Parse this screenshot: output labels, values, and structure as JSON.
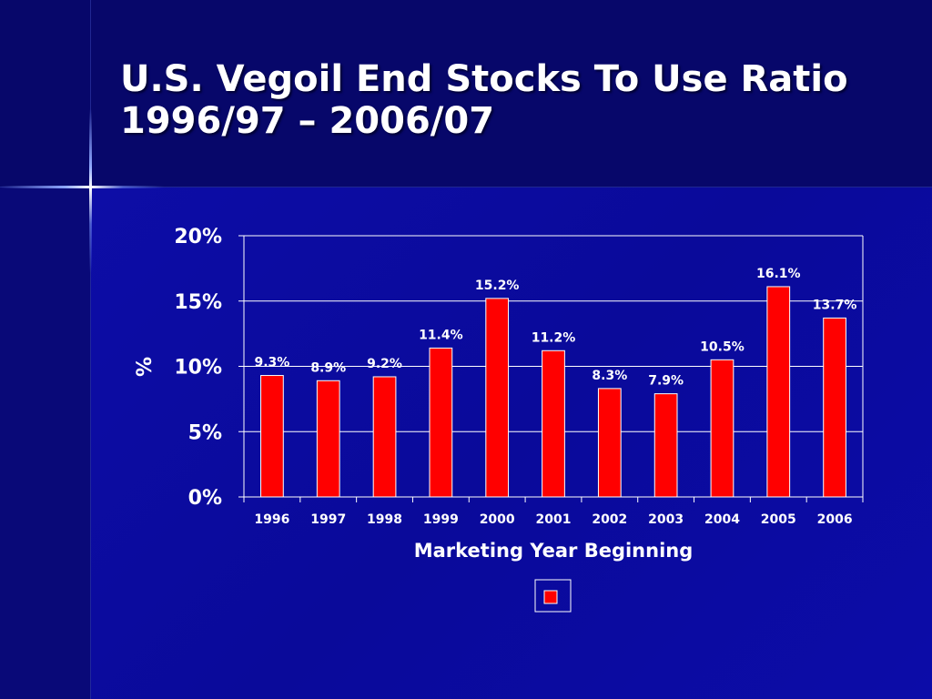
{
  "title": {
    "line1": "U.S. Vegoil End Stocks To Use Ratio",
    "line2": "1996/97 – 2006/07"
  },
  "colors": {
    "bar_fill": "#ff0000",
    "bar_stroke": "#ffffff",
    "text": "#ffffff",
    "gridline": "#ffffff"
  },
  "chart_data": {
    "type": "bar",
    "title": "",
    "xlabel": "Marketing Year Beginning",
    "ylabel": "%",
    "categories": [
      "1996",
      "1997",
      "1998",
      "1999",
      "2000",
      "2001",
      "2002",
      "2003",
      "2004",
      "2005",
      "2006"
    ],
    "series": [
      {
        "name": "",
        "values": [
          9.3,
          8.9,
          9.2,
          11.4,
          15.2,
          11.2,
          8.3,
          7.9,
          10.5,
          16.1,
          13.7
        ],
        "labels": [
          "9.3%",
          "8.9%",
          "9.2%",
          "11.4%",
          "15.2%",
          "11.2%",
          "8.3%",
          "7.9%",
          "10.5%",
          "16.1%",
          "13.7%"
        ]
      }
    ],
    "ylim": [
      0,
      20
    ],
    "yticks": [
      0,
      5,
      10,
      15,
      20
    ],
    "ytick_labels": [
      "0%",
      "5%",
      "10%",
      "15%",
      "20%"
    ],
    "grid": true,
    "legend": "bottom-center"
  }
}
